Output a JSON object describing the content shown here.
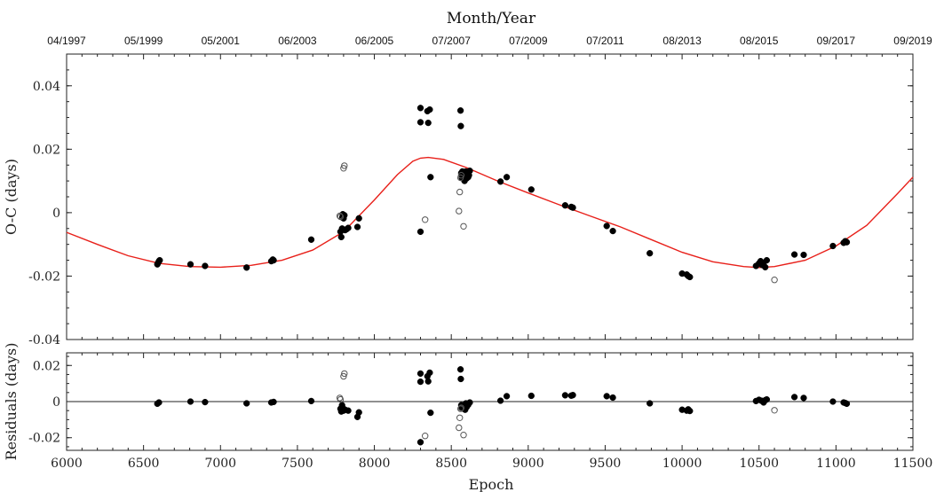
{
  "chart_data": [
    {
      "type": "scatter",
      "panel": "O-C",
      "xlabel": "Epoch",
      "ylabel": "O-C (days)",
      "top_axis_label": "Month/Year",
      "top_ticks": [
        "04/1997",
        "05/1999",
        "05/2001",
        "06/2003",
        "06/2005",
        "07/2007",
        "07/2009",
        "07/2011",
        "08/2013",
        "08/2015",
        "09/2017",
        "09/2019"
      ],
      "xlim": [
        6000,
        11500
      ],
      "ylim": [
        -0.04,
        0.05
      ],
      "y_ticks": [
        "0.04",
        "0.02",
        "0",
        "-0.02",
        "-0.04"
      ],
      "x_ticks": [
        "6000",
        "6500",
        "7000",
        "7500",
        "8000",
        "8500",
        "9000",
        "9500",
        "10000",
        "10500",
        "11000",
        "11500"
      ],
      "colors": {
        "fit": "#e8201a",
        "points": "#000000"
      },
      "series": [
        {
          "marker": "filled-circle",
          "points": [
            [
              6590,
              -0.0163
            ],
            [
              6595,
              -0.0158
            ],
            [
              6600,
              -0.0153
            ],
            [
              6605,
              -0.015
            ],
            [
              6805,
              -0.0163
            ],
            [
              6900,
              -0.0168
            ],
            [
              7170,
              -0.0173
            ],
            [
              7330,
              -0.0153
            ],
            [
              7340,
              -0.0148
            ],
            [
              7345,
              -0.015
            ],
            [
              7590,
              -0.0085
            ],
            [
              7780,
              -0.006
            ],
            [
              7785,
              -0.0077
            ],
            [
              7790,
              -0.005
            ],
            [
              7792,
              -0.0015
            ],
            [
              7795,
              -0.0005
            ],
            [
              7800,
              -0.0018
            ],
            [
              7805,
              -0.0008
            ],
            [
              7810,
              -0.0055
            ],
            [
              7820,
              -0.0052
            ],
            [
              7830,
              -0.0048
            ],
            [
              7890,
              -0.0045
            ],
            [
              7900,
              -0.0018
            ],
            [
              8300,
              0.033
            ],
            [
              8300,
              0.0285
            ],
            [
              8300,
              -0.006
            ],
            [
              8345,
              0.032
            ],
            [
              8350,
              0.0283
            ],
            [
              8360,
              0.0325
            ],
            [
              8365,
              0.0112
            ],
            [
              8560,
              0.0322
            ],
            [
              8562,
              0.0273
            ],
            [
              8565,
              0.0125
            ],
            [
              8568,
              0.011
            ],
            [
              8570,
              0.0115
            ],
            [
              8572,
              0.013
            ],
            [
              8575,
              0.0118
            ],
            [
              8578,
              0.0107
            ],
            [
              8580,
              0.0122
            ],
            [
              8583,
              0.0113
            ],
            [
              8586,
              0.01
            ],
            [
              8590,
              0.012
            ],
            [
              8595,
              0.013
            ],
            [
              8600,
              0.0108
            ],
            [
              8605,
              0.0125
            ],
            [
              8610,
              0.0112
            ],
            [
              8615,
              0.0118
            ],
            [
              8620,
              0.0132
            ],
            [
              8820,
              0.0098
            ],
            [
              8860,
              0.0112
            ],
            [
              9020,
              0.0073
            ],
            [
              9240,
              0.0023
            ],
            [
              9280,
              0.0018
            ],
            [
              9290,
              0.0016
            ],
            [
              9510,
              -0.0042
            ],
            [
              9550,
              -0.0058
            ],
            [
              9790,
              -0.0128
            ],
            [
              10000,
              -0.0192
            ],
            [
              10030,
              -0.0195
            ],
            [
              10040,
              -0.02
            ],
            [
              10050,
              -0.0203
            ],
            [
              10480,
              -0.0168
            ],
            [
              10500,
              -0.016
            ],
            [
              10510,
              -0.0153
            ],
            [
              10515,
              -0.0162
            ],
            [
              10520,
              -0.0165
            ],
            [
              10530,
              -0.0158
            ],
            [
              10540,
              -0.0172
            ],
            [
              10550,
              -0.015
            ],
            [
              10730,
              -0.0132
            ],
            [
              10790,
              -0.0133
            ],
            [
              10980,
              -0.0105
            ],
            [
              11050,
              -0.0095
            ],
            [
              11060,
              -0.009
            ],
            [
              11070,
              -0.0093
            ]
          ]
        },
        {
          "marker": "open-circle",
          "points": [
            [
              7775,
              -0.001
            ],
            [
              7780,
              -0.0013
            ],
            [
              7800,
              0.014
            ],
            [
              7805,
              0.0148
            ],
            [
              8330,
              -0.0022
            ],
            [
              8550,
              0.0005
            ],
            [
              8555,
              0.0065
            ],
            [
              8560,
              0.011
            ],
            [
              8565,
              0.0118
            ],
            [
              8580,
              -0.0043
            ],
            [
              10600,
              -0.0212
            ]
          ]
        },
        {
          "marker": "line",
          "fit": [
            [
              6000,
              -0.0062
            ],
            [
              6200,
              -0.01
            ],
            [
              6400,
              -0.0136
            ],
            [
              6600,
              -0.016
            ],
            [
              6800,
              -0.017
            ],
            [
              7000,
              -0.0172
            ],
            [
              7200,
              -0.0166
            ],
            [
              7400,
              -0.015
            ],
            [
              7600,
              -0.0118
            ],
            [
              7800,
              -0.006
            ],
            [
              8000,
              0.004
            ],
            [
              8150,
              0.012
            ],
            [
              8250,
              0.0162
            ],
            [
              8300,
              0.0172
            ],
            [
              8350,
              0.0174
            ],
            [
              8450,
              0.0168
            ],
            [
              8600,
              0.0142
            ],
            [
              8800,
              0.01
            ],
            [
              9000,
              0.0062
            ],
            [
              9200,
              0.0025
            ],
            [
              9400,
              -0.001
            ],
            [
              9600,
              -0.0045
            ],
            [
              9800,
              -0.0085
            ],
            [
              10000,
              -0.0125
            ],
            [
              10200,
              -0.0155
            ],
            [
              10400,
              -0.017
            ],
            [
              10500,
              -0.0173
            ],
            [
              10600,
              -0.017
            ],
            [
              10800,
              -0.015
            ],
            [
              11000,
              -0.0105
            ],
            [
              11200,
              -0.004
            ],
            [
              11400,
              0.006
            ],
            [
              11500,
              0.0112
            ]
          ]
        }
      ]
    },
    {
      "type": "scatter",
      "panel": "Residuals",
      "xlabel": "Epoch",
      "ylabel": "Residuals (days)",
      "xlim": [
        6000,
        11500
      ],
      "ylim": [
        -0.027,
        0.027
      ],
      "y_ticks": [
        "0.02",
        "0",
        "-0.02"
      ],
      "series": [
        {
          "marker": "filled-circle",
          "points": [
            [
              6590,
              -0.0012
            ],
            [
              6600,
              -0.0005
            ],
            [
              6805,
              0.0
            ],
            [
              6900,
              -0.0003
            ],
            [
              7170,
              -0.001
            ],
            [
              7330,
              -0.0005
            ],
            [
              7345,
              -0.0002
            ],
            [
              7590,
              0.0003
            ],
            [
              7780,
              -0.004
            ],
            [
              7785,
              -0.0055
            ],
            [
              7790,
              -0.002
            ],
            [
              7795,
              -0.0035
            ],
            [
              7800,
              -0.005
            ],
            [
              7810,
              -0.0045
            ],
            [
              7830,
              -0.005
            ],
            [
              7890,
              -0.0085
            ],
            [
              7900,
              -0.006
            ],
            [
              8300,
              0.0155
            ],
            [
              8300,
              0.011
            ],
            [
              8300,
              -0.0225
            ],
            [
              8345,
              0.014
            ],
            [
              8350,
              0.0112
            ],
            [
              8360,
              0.016
            ],
            [
              8365,
              -0.0062
            ],
            [
              8560,
              0.0178
            ],
            [
              8562,
              0.0125
            ],
            [
              8565,
              -0.002
            ],
            [
              8570,
              -0.0035
            ],
            [
              8575,
              -0.0022
            ],
            [
              8580,
              -0.004
            ],
            [
              8586,
              -0.0028
            ],
            [
              8590,
              -0.0045
            ],
            [
              8595,
              -0.001
            ],
            [
              8600,
              -0.003
            ],
            [
              8610,
              -0.0018
            ],
            [
              8620,
              -0.0005
            ],
            [
              8820,
              0.0005
            ],
            [
              8860,
              0.003
            ],
            [
              9020,
              0.0032
            ],
            [
              9240,
              0.0035
            ],
            [
              9280,
              0.0033
            ],
            [
              9290,
              0.0036
            ],
            [
              9510,
              0.003
            ],
            [
              9550,
              0.0022
            ],
            [
              9790,
              -0.001
            ],
            [
              10000,
              -0.0045
            ],
            [
              10030,
              -0.005
            ],
            [
              10040,
              -0.0043
            ],
            [
              10050,
              -0.0052
            ],
            [
              10480,
              0.0003
            ],
            [
              10500,
              0.001
            ],
            [
              10515,
              0.0005
            ],
            [
              10530,
              -0.0005
            ],
            [
              10540,
              0.0008
            ],
            [
              10550,
              0.0012
            ],
            [
              10730,
              0.0025
            ],
            [
              10790,
              0.002
            ],
            [
              10980,
              0.0
            ],
            [
              11050,
              -0.0005
            ],
            [
              11060,
              -0.0008
            ],
            [
              11070,
              -0.0012
            ]
          ]
        },
        {
          "marker": "open-circle",
          "points": [
            [
              7775,
              0.002
            ],
            [
              7780,
              0.0012
            ],
            [
              7800,
              0.014
            ],
            [
              7805,
              0.0155
            ],
            [
              8330,
              -0.019
            ],
            [
              8550,
              -0.0145
            ],
            [
              8555,
              -0.009
            ],
            [
              8560,
              -0.004
            ],
            [
              8565,
              -0.0035
            ],
            [
              8580,
              -0.0185
            ],
            [
              10600,
              -0.0048
            ]
          ]
        }
      ]
    }
  ]
}
